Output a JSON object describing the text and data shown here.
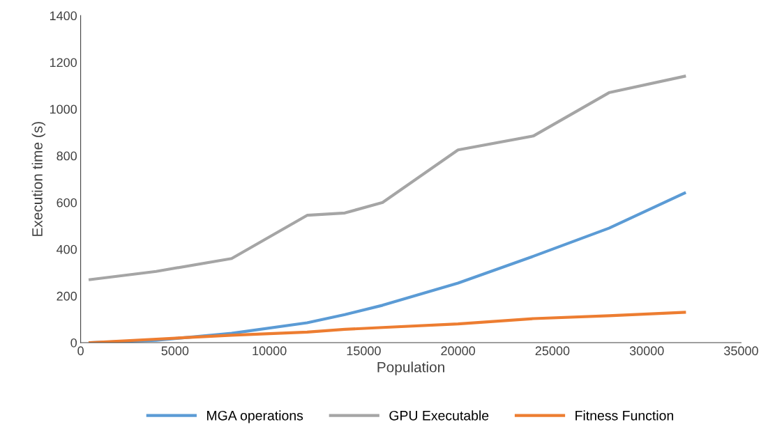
{
  "chart_data": {
    "type": "line",
    "xlabel": "Population",
    "ylabel": "Execution time (s)",
    "x": [
      500,
      4000,
      8000,
      12000,
      14000,
      16000,
      20000,
      24000,
      28000,
      32000
    ],
    "series": [
      {
        "name": "MGA operations",
        "color": "#5b9bd5",
        "values": [
          0,
          10,
          40,
          85,
          120,
          160,
          255,
          370,
          490,
          640
        ]
      },
      {
        "name": "GPU Executable",
        "color": "#a5a5a5",
        "values": [
          270,
          305,
          360,
          545,
          555,
          600,
          825,
          885,
          1070,
          1140
        ]
      },
      {
        "name": "Fitness Function",
        "color": "#ed7d31",
        "values": [
          0,
          15,
          32,
          45,
          57,
          65,
          80,
          103,
          115,
          130
        ]
      }
    ],
    "xlim": [
      0,
      35000
    ],
    "xticks": [
      0,
      5000,
      10000,
      15000,
      20000,
      25000,
      30000,
      35000
    ],
    "ylim": [
      0,
      1400
    ],
    "yticks": [
      0,
      200,
      400,
      600,
      800,
      1000,
      1200,
      1400
    ],
    "grid": false,
    "legend": "bottom",
    "marker": "none",
    "line_style": "solid"
  }
}
